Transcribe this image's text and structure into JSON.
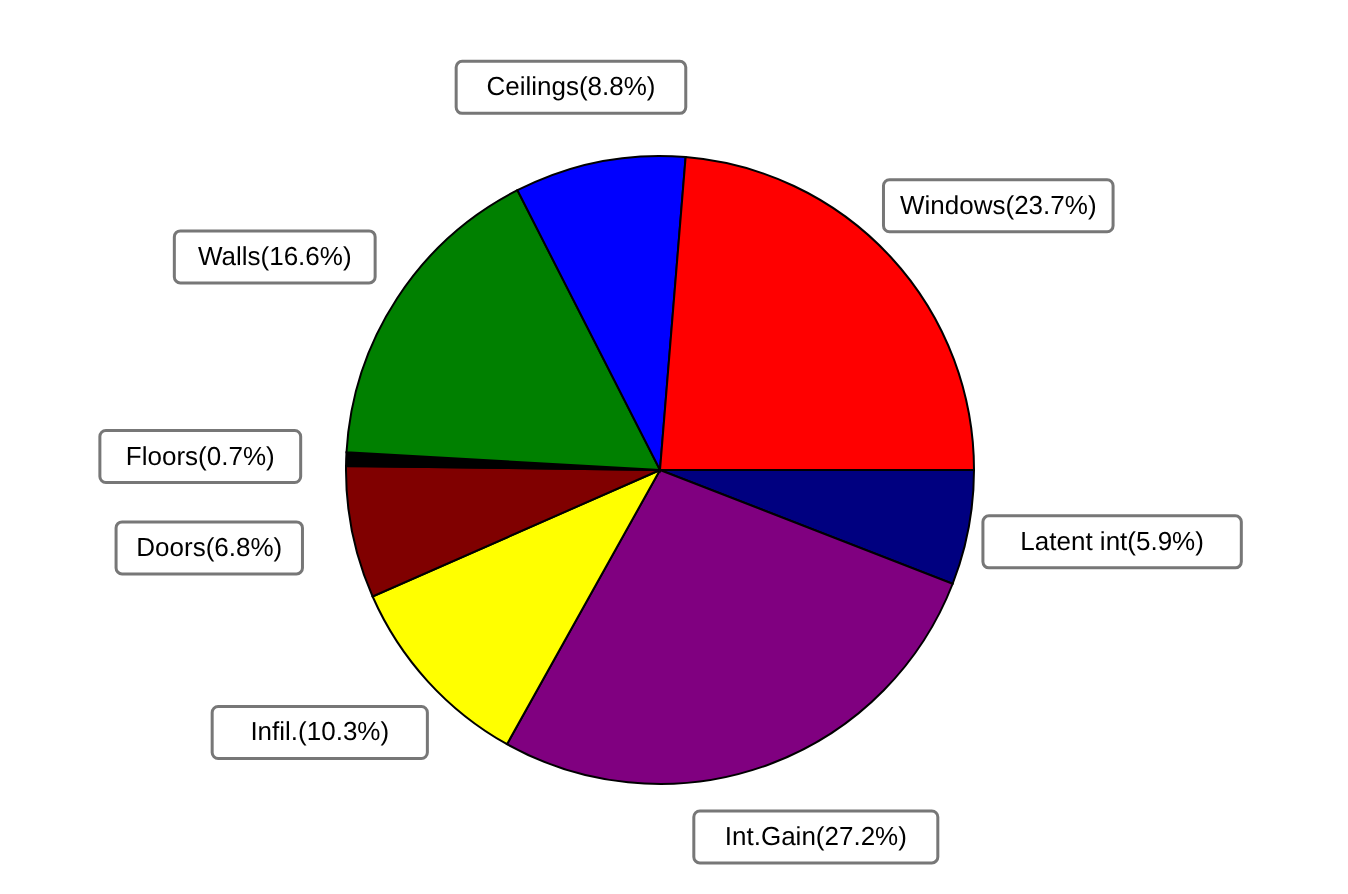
{
  "chart_data": {
    "type": "pie",
    "categories": [
      "Latent int(5.9%)",
      "Int.Gain(27.2%)",
      "Infil.(10.3%)",
      "Doors(6.8%)",
      "Floors(0.7%)",
      "Walls(16.6%)",
      "Ceilings(8.8%)",
      "Windows(23.7%)"
    ],
    "values": [
      5.9,
      27.2,
      10.3,
      6.8,
      0.7,
      16.6,
      8.8,
      23.7
    ],
    "colors": [
      "#000080",
      "#800080",
      "#ffff00",
      "#800000",
      "#000000",
      "#008000",
      "#0000ff",
      "#ff0000"
    ]
  }
}
